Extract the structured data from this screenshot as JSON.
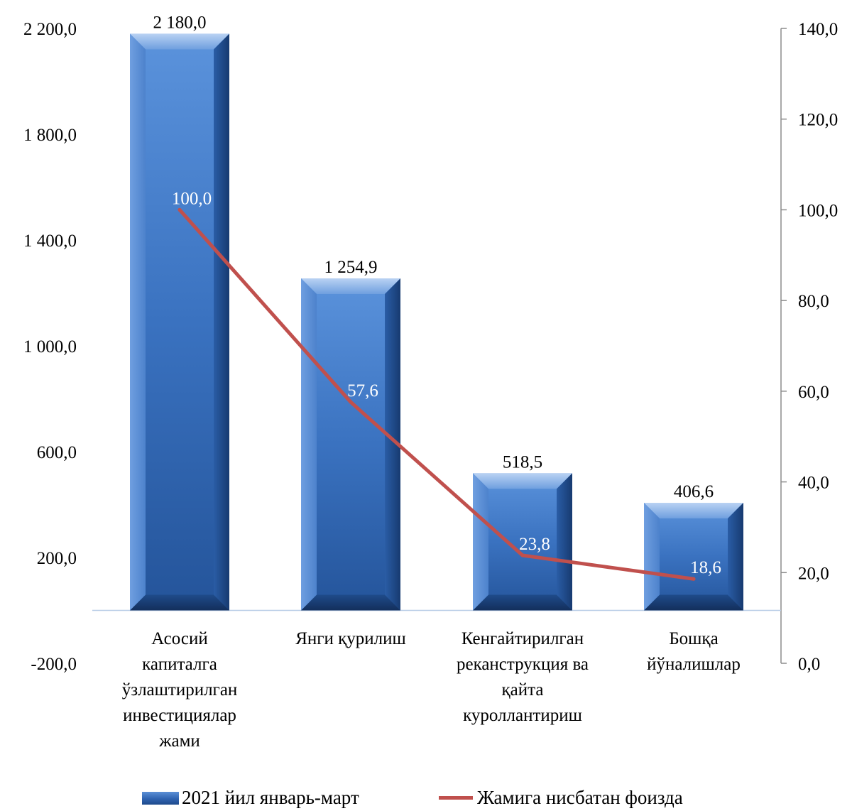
{
  "chart_data": {
    "type": "bar",
    "categories": [
      [
        "Асосий",
        "капиталга",
        "ўзлаштирилган",
        "инвестициялар",
        "жами"
      ],
      [
        "Янги қурилиш"
      ],
      [
        "Кенгайтирилган",
        "реканструкция ва",
        "қайта",
        "куроллантириш"
      ],
      [
        "Бошқа",
        "йўналишлар"
      ]
    ],
    "series": [
      {
        "name": "2021 йил январь-март",
        "type": "bar",
        "axis": "left",
        "values": [
          2180.0,
          1254.9,
          518.5,
          406.6
        ],
        "labels": [
          "2 180,0",
          "1 254,9",
          "518,5",
          "406,6"
        ],
        "color": "#2f63b0"
      },
      {
        "name": "Жамига нисбатан фоизда",
        "type": "line",
        "axis": "right",
        "values": [
          100.0,
          57.6,
          23.8,
          18.6
        ],
        "labels": [
          "100,0",
          "57,6",
          "23,8",
          "18,6"
        ],
        "color": "#c0504d"
      }
    ],
    "y_left": {
      "min": -200,
      "max": 2200,
      "ticks": [
        2200,
        1800,
        1400,
        1000,
        600,
        200,
        -200
      ],
      "tick_labels": [
        "2 200,0",
        "1 800,0",
        "1 400,0",
        "1 000,0",
        "600,0",
        "200,0",
        "-200,0"
      ]
    },
    "y_right": {
      "min": 0,
      "max": 140,
      "ticks": [
        140,
        120,
        100,
        80,
        60,
        40,
        20,
        0
      ],
      "tick_labels": [
        "140,0",
        "120,0",
        "100,0",
        "80,0",
        "60,0",
        "40,0",
        "20,0",
        "0,0"
      ]
    },
    "grid": false,
    "legend_position": "bottom"
  }
}
